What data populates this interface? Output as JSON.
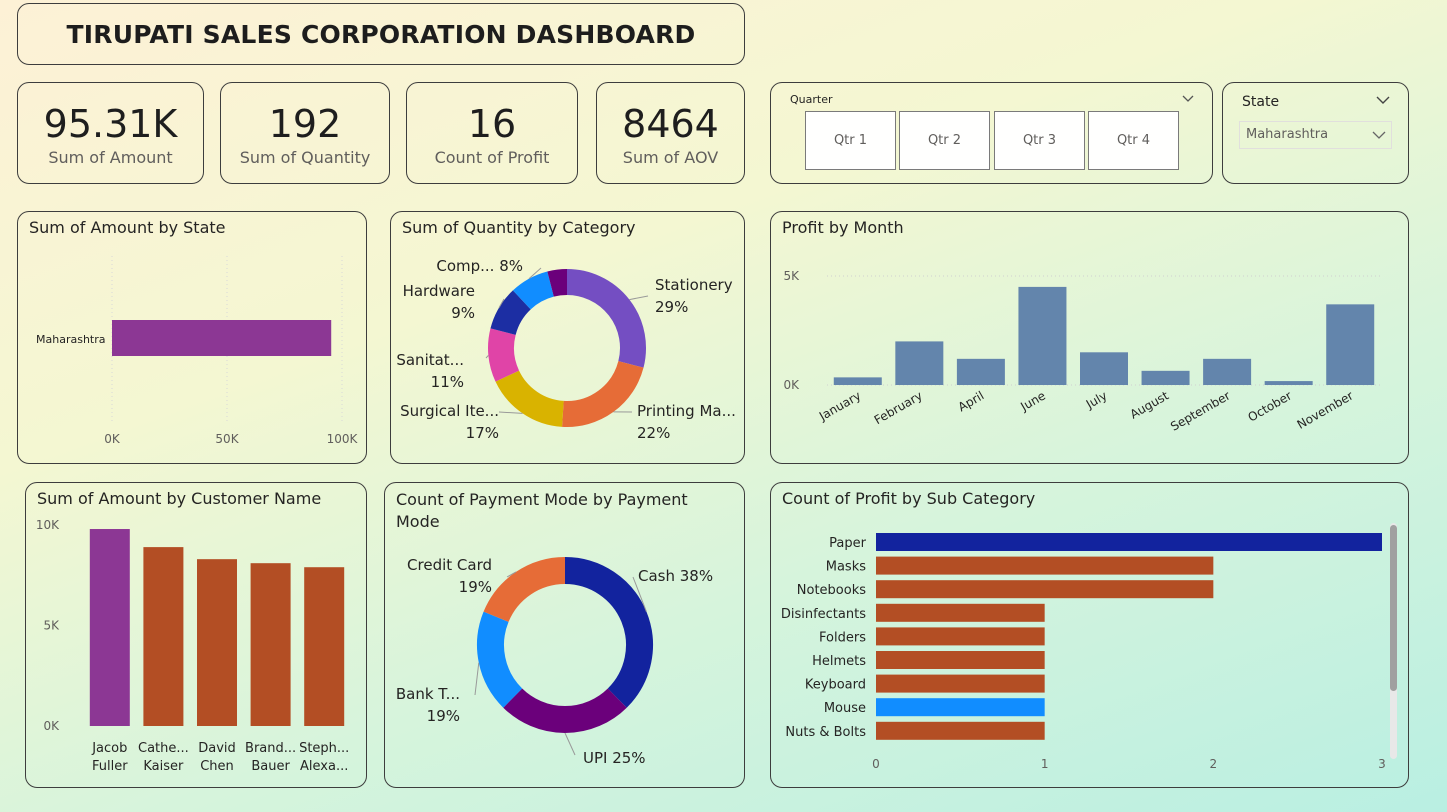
{
  "header": {
    "title": "TIRUPATI SALES CORPORATION DASHBOARD"
  },
  "kpis": [
    {
      "value": "95.31K",
      "label": "Sum of Amount"
    },
    {
      "value": "192",
      "label": "Sum of Quantity"
    },
    {
      "value": "16",
      "label": "Count of Profit"
    },
    {
      "value": "8464",
      "label": "Sum of AOV"
    }
  ],
  "quarter_slicer": {
    "label": "Quarter",
    "options": [
      "Qtr 1",
      "Qtr 2",
      "Qtr 3",
      "Qtr 4"
    ]
  },
  "state_slicer": {
    "label": "State",
    "selected": "Maharashtra"
  },
  "chart_data": [
    {
      "id": "amount_by_state",
      "type": "bar",
      "orientation": "horizontal",
      "title": "Sum of Amount by State",
      "categories": [
        "Maharashtra"
      ],
      "values": [
        95310
      ],
      "xlim": [
        0,
        100000
      ],
      "xticks": [
        "0K",
        "50K",
        "100K"
      ],
      "color": "#8c3794",
      "grid": true
    },
    {
      "id": "quantity_by_category",
      "type": "pie",
      "donut": true,
      "title": "Sum of Quantity by Category",
      "slices": [
        {
          "label": "Stationery",
          "pct": 29,
          "color": "#744ec2"
        },
        {
          "label": "Printing Ma...",
          "pct": 22,
          "color": "#e66c37"
        },
        {
          "label": "Surgical Ite...",
          "pct": 17,
          "color": "#d9b300"
        },
        {
          "label": "Sanitat...",
          "pct": 11,
          "color": "#e044a7"
        },
        {
          "label": "Hardware",
          "pct": 9,
          "color": "#1c2ea3"
        },
        {
          "label": "Comp...",
          "pct": 8,
          "color": "#118dff"
        },
        {
          "label": "",
          "pct": 4,
          "color": "#6b007b"
        }
      ]
    },
    {
      "id": "profit_by_month",
      "type": "bar",
      "title": "Profit by Month",
      "categories": [
        "January",
        "February",
        "April",
        "June",
        "July",
        "August",
        "September",
        "October",
        "November"
      ],
      "values": [
        350,
        2000,
        1200,
        4500,
        1500,
        650,
        1200,
        180,
        3700
      ],
      "ylim": [
        0,
        5000
      ],
      "yticks": [
        "0K",
        "5K"
      ],
      "color": "#6385ac"
    },
    {
      "id": "amount_by_customer",
      "type": "bar",
      "title": "Sum of Amount by Customer Name",
      "categories": [
        {
          "line1": "Jacob",
          "line2": "Fuller"
        },
        {
          "line1": "Cathe...",
          "line2": "Kaiser"
        },
        {
          "line1": "David",
          "line2": "Chen"
        },
        {
          "line1": "Brand...",
          "line2": "Bauer"
        },
        {
          "line1": "Steph...",
          "line2": "Alexa..."
        }
      ],
      "values": [
        9800,
        8900,
        8300,
        8100,
        7900
      ],
      "colors": [
        "#8c3794",
        "#b34e24",
        "#b34e24",
        "#b34e24",
        "#b34e24"
      ],
      "ylim": [
        0,
        10000
      ],
      "yticks": [
        "0K",
        "5K",
        "10K"
      ]
    },
    {
      "id": "payment_mode",
      "type": "pie",
      "donut": true,
      "title": "Count of Payment Mode by Payment Mode",
      "slices": [
        {
          "label": "Cash",
          "pct": 38,
          "color": "#12239e"
        },
        {
          "label": "UPI",
          "pct": 25,
          "color": "#6b007b"
        },
        {
          "label": "Bank T...",
          "pct": 19,
          "color": "#118dff"
        },
        {
          "label": "Credit Card",
          "pct": 19,
          "color": "#e66c37"
        }
      ]
    },
    {
      "id": "profit_by_subcategory",
      "type": "bar",
      "orientation": "horizontal",
      "title": "Count of Profit by Sub Category",
      "categories": [
        "Paper",
        "Masks",
        "Notebooks",
        "Disinfectants",
        "Folders",
        "Helmets",
        "Keyboard",
        "Mouse",
        "Nuts & Bolts"
      ],
      "values": [
        3,
        2,
        2,
        1,
        1,
        1,
        1,
        1,
        1
      ],
      "colors": [
        "#12239e",
        "#b34e24",
        "#b34e24",
        "#b34e24",
        "#b34e24",
        "#b34e24",
        "#b34e24",
        "#118dff",
        "#b34e24"
      ],
      "xlim": [
        0,
        3
      ],
      "xticks": [
        "0",
        "1",
        "2",
        "3"
      ]
    }
  ]
}
